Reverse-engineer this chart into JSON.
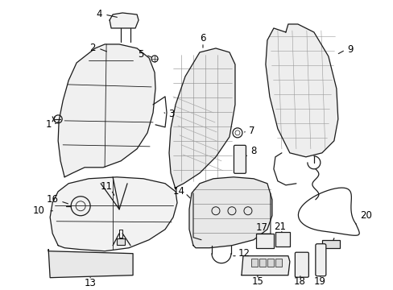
{
  "bg_color": "#ffffff",
  "line_color": "#1a1a1a",
  "text_color": "#000000",
  "label_fontsize": 8.5,
  "fig_w": 4.89,
  "fig_h": 3.6,
  "dpi": 100
}
